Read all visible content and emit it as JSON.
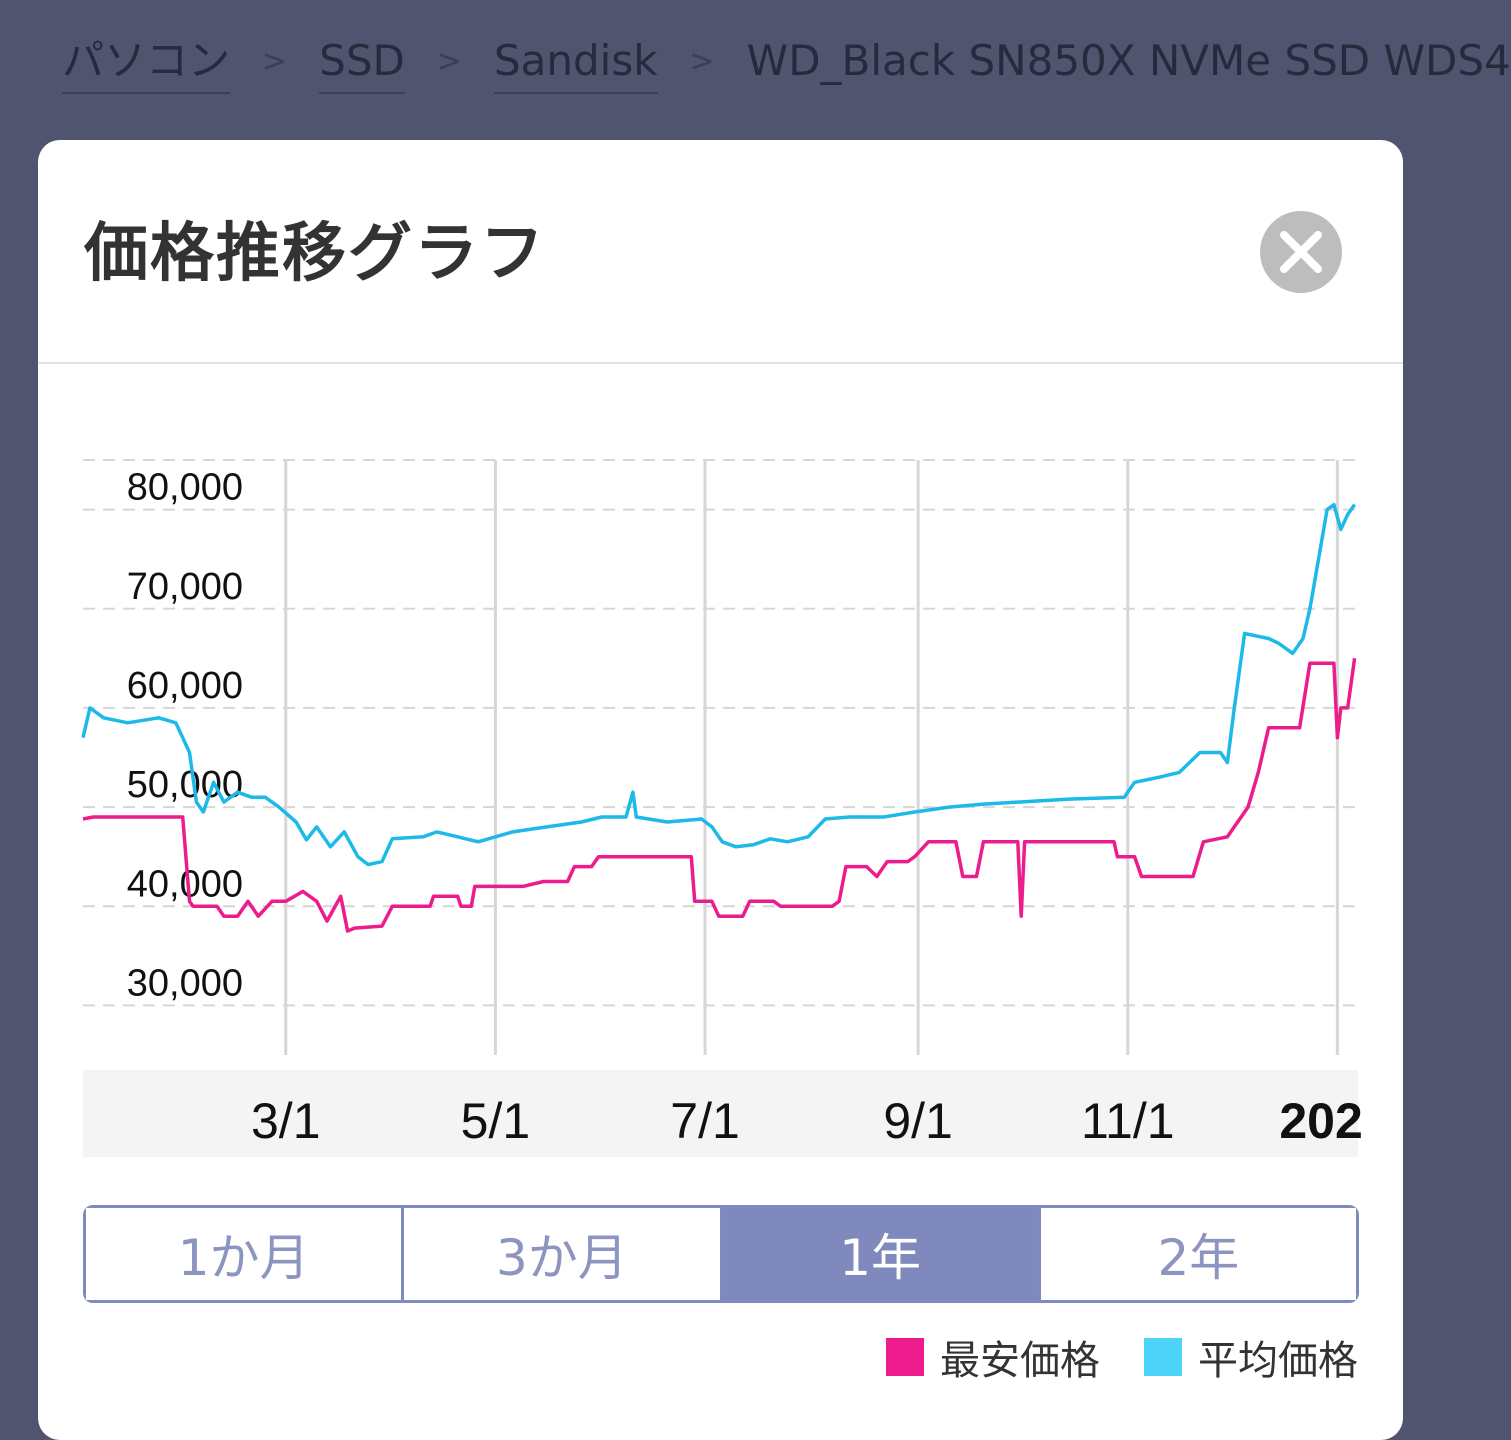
{
  "breadcrumb": {
    "items": [
      "パソコン",
      "SSD",
      "Sandisk"
    ],
    "separator": ">",
    "current": "WD_Black SN850X NVMe SSD WDS4"
  },
  "modal": {
    "title": "価格推移グラフ",
    "close_icon": "close-icon"
  },
  "range_tabs": [
    {
      "label": "1か月",
      "active": false
    },
    {
      "label": "3か月",
      "active": false
    },
    {
      "label": "1年",
      "active": true
    },
    {
      "label": "2年",
      "active": false
    }
  ],
  "colors": {
    "lowest": "#ec1c8c",
    "average": "#1db9e8",
    "active_tab": "#8089bd",
    "legend_average": "#4dd2fa"
  },
  "chart_data": {
    "type": "line",
    "x_unit": "date",
    "x_range": [
      "2024-01-02",
      "2025-01-07"
    ],
    "ylim": [
      25000,
      85000
    ],
    "ytick_values": [
      30000,
      40000,
      50000,
      60000,
      70000,
      80000
    ],
    "ytick_labels": [
      "30,000",
      "40,000",
      "50,000",
      "60,000",
      "70,000",
      "80,000"
    ],
    "xtick_dates": [
      "2024-03-01",
      "2024-05-01",
      "2024-07-01",
      "2024-09-01",
      "2024-11-01",
      "2025-01-01"
    ],
    "xtick_labels": [
      "3/1",
      "5/1",
      "7/1",
      "9/1",
      "11/1",
      "202"
    ],
    "grid": true,
    "legend": "bottom-right",
    "series": [
      {
        "name": "最安価格",
        "points": [
          [
            "2024-01-02",
            48800
          ],
          [
            "2024-01-05",
            49000
          ],
          [
            "2024-01-31",
            49000
          ],
          [
            "2024-02-02",
            40500
          ],
          [
            "2024-02-03",
            40000
          ],
          [
            "2024-02-10",
            40000
          ],
          [
            "2024-02-12",
            39000
          ],
          [
            "2024-02-16",
            39000
          ],
          [
            "2024-02-19",
            40500
          ],
          [
            "2024-02-22",
            39000
          ],
          [
            "2024-02-26",
            40500
          ],
          [
            "2024-03-01",
            40500
          ],
          [
            "2024-03-06",
            41500
          ],
          [
            "2024-03-10",
            40500
          ],
          [
            "2024-03-13",
            38500
          ],
          [
            "2024-03-17",
            41000
          ],
          [
            "2024-03-19",
            37500
          ],
          [
            "2024-03-21",
            37800
          ],
          [
            "2024-03-29",
            38000
          ],
          [
            "2024-04-01",
            40000
          ],
          [
            "2024-04-12",
            40000
          ],
          [
            "2024-04-13",
            41000
          ],
          [
            "2024-04-20",
            41000
          ],
          [
            "2024-04-21",
            40000
          ],
          [
            "2024-04-24",
            40000
          ],
          [
            "2024-04-25",
            42000
          ],
          [
            "2024-05-08",
            42000
          ],
          [
            "2024-05-09",
            42000
          ],
          [
            "2024-05-15",
            42500
          ],
          [
            "2024-05-22",
            42500
          ],
          [
            "2024-05-24",
            44000
          ],
          [
            "2024-05-29",
            44000
          ],
          [
            "2024-05-31",
            45000
          ],
          [
            "2024-06-27",
            45000
          ],
          [
            "2024-06-28",
            40500
          ],
          [
            "2024-07-03",
            40500
          ],
          [
            "2024-07-05",
            39000
          ],
          [
            "2024-07-12",
            39000
          ],
          [
            "2024-07-14",
            40500
          ],
          [
            "2024-07-21",
            40500
          ],
          [
            "2024-07-23",
            40000
          ],
          [
            "2024-08-07",
            40000
          ],
          [
            "2024-08-09",
            40500
          ],
          [
            "2024-08-11",
            44000
          ],
          [
            "2024-08-17",
            44000
          ],
          [
            "2024-08-20",
            43000
          ],
          [
            "2024-08-23",
            44500
          ],
          [
            "2024-08-29",
            44500
          ],
          [
            "2024-08-31",
            45000
          ],
          [
            "2024-09-04",
            46500
          ],
          [
            "2024-09-12",
            46500
          ],
          [
            "2024-09-14",
            43000
          ],
          [
            "2024-09-18",
            43000
          ],
          [
            "2024-09-20",
            46500
          ],
          [
            "2024-09-30",
            46500
          ],
          [
            "2024-10-01",
            39000
          ],
          [
            "2024-10-02",
            46500
          ],
          [
            "2024-10-28",
            46500
          ],
          [
            "2024-10-29",
            45000
          ],
          [
            "2024-11-03",
            45000
          ],
          [
            "2024-11-05",
            43000
          ],
          [
            "2024-11-20",
            43000
          ],
          [
            "2024-11-23",
            46500
          ],
          [
            "2024-11-30",
            47000
          ],
          [
            "2024-12-06",
            50000
          ],
          [
            "2024-12-09",
            53500
          ],
          [
            "2024-12-12",
            58000
          ],
          [
            "2024-12-21",
            58000
          ],
          [
            "2024-12-24",
            64500
          ],
          [
            "2024-12-31",
            64500
          ],
          [
            "2025-01-01",
            57000
          ],
          [
            "2025-01-02",
            60000
          ],
          [
            "2025-01-04",
            60000
          ],
          [
            "2025-01-06",
            65000
          ]
        ]
      },
      {
        "name": "平均価格",
        "points": [
          [
            "2024-01-02",
            57000
          ],
          [
            "2024-01-04",
            60000
          ],
          [
            "2024-01-08",
            59000
          ],
          [
            "2024-01-15",
            58500
          ],
          [
            "2024-01-24",
            59000
          ],
          [
            "2024-01-29",
            58500
          ],
          [
            "2024-01-31",
            57000
          ],
          [
            "2024-02-02",
            55500
          ],
          [
            "2024-02-04",
            50500
          ],
          [
            "2024-02-06",
            49500
          ],
          [
            "2024-02-09",
            52500
          ],
          [
            "2024-02-12",
            50500
          ],
          [
            "2024-02-16",
            51500
          ],
          [
            "2024-02-20",
            51000
          ],
          [
            "2024-02-24",
            51000
          ],
          [
            "2024-02-28",
            50000
          ],
          [
            "2024-03-04",
            48500
          ],
          [
            "2024-03-07",
            46700
          ],
          [
            "2024-03-10",
            48000
          ],
          [
            "2024-03-14",
            46000
          ],
          [
            "2024-03-18",
            47500
          ],
          [
            "2024-03-22",
            45000
          ],
          [
            "2024-03-25",
            44200
          ],
          [
            "2024-03-29",
            44500
          ],
          [
            "2024-04-01",
            46800
          ],
          [
            "2024-04-10",
            47000
          ],
          [
            "2024-04-14",
            47500
          ],
          [
            "2024-04-20",
            47000
          ],
          [
            "2024-04-26",
            46500
          ],
          [
            "2024-05-06",
            47500
          ],
          [
            "2024-05-16",
            48000
          ],
          [
            "2024-05-26",
            48500
          ],
          [
            "2024-06-01",
            49000
          ],
          [
            "2024-06-08",
            49000
          ],
          [
            "2024-06-10",
            51500
          ],
          [
            "2024-06-11",
            49000
          ],
          [
            "2024-06-20",
            48500
          ],
          [
            "2024-06-30",
            48800
          ],
          [
            "2024-07-03",
            48000
          ],
          [
            "2024-07-06",
            46500
          ],
          [
            "2024-07-10",
            46000
          ],
          [
            "2024-07-15",
            46200
          ],
          [
            "2024-07-20",
            46800
          ],
          [
            "2024-07-25",
            46500
          ],
          [
            "2024-07-31",
            47000
          ],
          [
            "2024-08-05",
            48800
          ],
          [
            "2024-08-12",
            49000
          ],
          [
            "2024-08-22",
            49000
          ],
          [
            "2024-08-31",
            49500
          ],
          [
            "2024-09-10",
            50000
          ],
          [
            "2024-09-20",
            50300
          ],
          [
            "2024-09-30",
            50500
          ],
          [
            "2024-10-15",
            50800
          ],
          [
            "2024-10-31",
            51000
          ],
          [
            "2024-11-03",
            52500
          ],
          [
            "2024-11-10",
            53000
          ],
          [
            "2024-11-16",
            53500
          ],
          [
            "2024-11-22",
            55500
          ],
          [
            "2024-11-28",
            55500
          ],
          [
            "2024-11-30",
            54500
          ],
          [
            "2024-12-02",
            60000
          ],
          [
            "2024-12-05",
            67500
          ],
          [
            "2024-12-12",
            67000
          ],
          [
            "2024-12-15",
            66500
          ],
          [
            "2024-12-19",
            65500
          ],
          [
            "2024-12-22",
            67000
          ],
          [
            "2024-12-24",
            70000
          ],
          [
            "2024-12-26",
            74000
          ],
          [
            "2024-12-29",
            80000
          ],
          [
            "2024-12-31",
            80500
          ],
          [
            "2025-01-02",
            78000
          ],
          [
            "2025-01-04",
            79500
          ],
          [
            "2025-01-06",
            80500
          ]
        ]
      }
    ]
  }
}
